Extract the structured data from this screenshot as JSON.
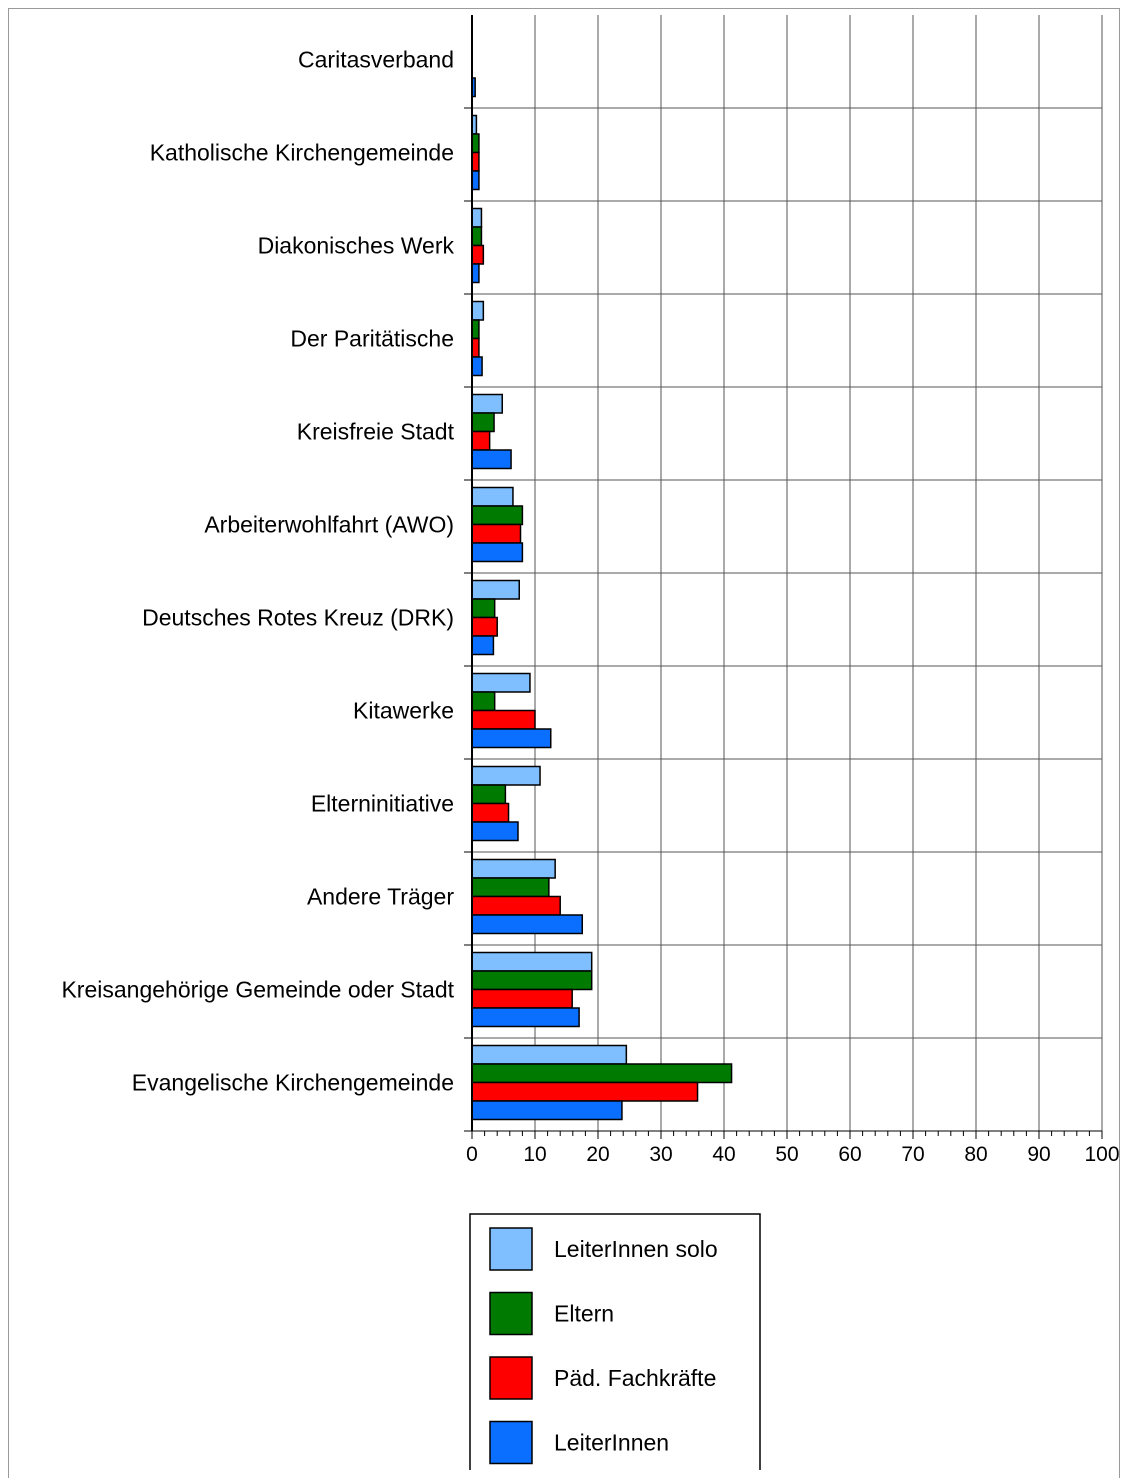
{
  "chart_data": {
    "type": "bar",
    "orientation": "horizontal",
    "categories": [
      "Caritasverband",
      "Katholische Kirchengemeinde",
      "Diakonisches Werk",
      "Der Paritätische",
      "Kreisfreie Stadt",
      "Arbeiterwohlfahrt (AWO)",
      "Deutsches Rotes Kreuz (DRK)",
      "Kitawerke",
      "Elterninitiative",
      "Andere Träger",
      "Kreisangehörige Gemeinde oder Stadt",
      "Evangelische Kirchengemeinde"
    ],
    "series": [
      {
        "name": "LeiterInnen solo",
        "color": "#7fbfff",
        "values": [
          0,
          0.7,
          1.5,
          1.8,
          4.8,
          6.5,
          7.5,
          9.2,
          10.8,
          13.2,
          19,
          24.5
        ]
      },
      {
        "name": "Eltern",
        "color": "#007a00",
        "values": [
          0,
          1.1,
          1.5,
          1.1,
          3.5,
          8,
          3.6,
          3.6,
          5.3,
          12.2,
          19,
          41.2
        ]
      },
      {
        "name": "Päd. Fachkräfte",
        "color": "#ff0000",
        "values": [
          0,
          1.1,
          1.8,
          1.1,
          2.8,
          7.7,
          4,
          10,
          5.8,
          14,
          15.9,
          35.8
        ]
      },
      {
        "name": "LeiterInnen",
        "color": "#0a6fff",
        "values": [
          0.5,
          1.1,
          1.1,
          1.6,
          6.2,
          8,
          3.4,
          12.5,
          7.3,
          17.5,
          17,
          23.8
        ]
      }
    ],
    "xlim": [
      0,
      100
    ],
    "xticks": [
      "0",
      "10",
      "20",
      "30",
      "40",
      "50",
      "60",
      "70",
      "80",
      "90",
      "100"
    ],
    "grid": true,
    "legend_position": "bottom",
    "title": "",
    "xlabel": "",
    "ylabel": ""
  }
}
